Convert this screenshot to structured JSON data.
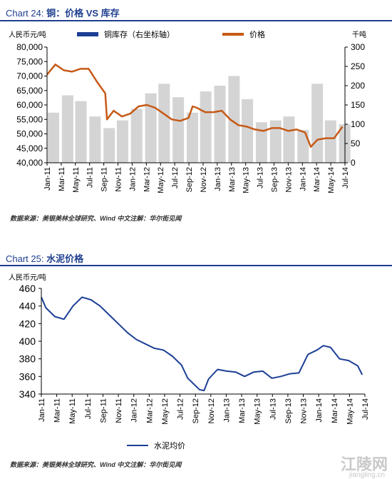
{
  "chart24": {
    "title_num": "Chart 24:",
    "title_text": "铜：价格 VS 库存",
    "left_unit": "人民币元/吨",
    "right_unit": "千吨",
    "source": "数据来源：美银美林全球研究、Wind          中文注解：华尔街见闻"
  },
  "chart25": {
    "title_num": "Chart 25:",
    "title_text": "水泥价格",
    "unit": "人民币元/吨",
    "source": "数据来源：美银美林全球研究、Wind          中文注解：华尔街见闻"
  },
  "watermark": {
    "main": "江陵网",
    "sub": "jiangling.cn"
  },
  "colors": {
    "title": "#1f3f8f",
    "inventory": "#1c3f95",
    "price": "#c65a17",
    "cement": "#1c3f95"
  },
  "chart_data": [
    {
      "type": "bar",
      "title": "铜：价格 VS 库存",
      "x_ticks": [
        "Jan-11",
        "Mar-11",
        "May-11",
        "Jul-11",
        "Sep-11",
        "Nov-11",
        "Jan-12",
        "Mar-12",
        "May-12",
        "Jul-12",
        "Sep-12",
        "Nov-12",
        "Jan-13",
        "Mar-13",
        "May-13",
        "Jul-13",
        "Sep-13",
        "Nov-13",
        "Jan-14",
        "Mar-14",
        "May-14",
        "Jul-14"
      ],
      "ylabel": "人民币元/吨",
      "ylim": [
        40000,
        80000
      ],
      "y_ticks": [
        40000,
        45000,
        50000,
        55000,
        60000,
        65000,
        70000,
        75000,
        80000
      ],
      "y2label": "千吨",
      "y2lim": [
        0,
        300
      ],
      "y2_ticks": [
        0,
        50,
        100,
        150,
        200,
        250,
        300
      ],
      "grid": false,
      "legend": "top",
      "series": [
        {
          "name": "铜库存（右坐标轴）",
          "axis": "right",
          "style": "bar",
          "x": [
            2011.0,
            2011.17,
            2011.33,
            2011.5,
            2011.67,
            2011.83,
            2012.0,
            2012.17,
            2012.33,
            2012.5,
            2012.67,
            2012.83,
            2013.0,
            2013.17,
            2013.33,
            2013.5,
            2013.67,
            2013.83,
            2014.0,
            2014.17,
            2014.33,
            2014.5
          ],
          "values": [
            130,
            175,
            160,
            120,
            90,
            110,
            140,
            180,
            205,
            170,
            130,
            185,
            200,
            225,
            165,
            105,
            110,
            120,
            85,
            205,
            110,
            100
          ]
        },
        {
          "name": "价格",
          "axis": "left",
          "style": "line",
          "x": [
            2011.0,
            2011.1,
            2011.2,
            2011.3,
            2011.4,
            2011.5,
            2011.6,
            2011.7,
            2011.72,
            2011.8,
            2011.9,
            2012.0,
            2012.1,
            2012.2,
            2012.3,
            2012.4,
            2012.5,
            2012.6,
            2012.7,
            2012.75,
            2012.8,
            2012.9,
            2013.0,
            2013.1,
            2013.2,
            2013.3,
            2013.4,
            2013.5,
            2013.6,
            2013.7,
            2013.8,
            2013.9,
            2014.0,
            2014.1,
            2014.17,
            2014.25,
            2014.35,
            2014.45,
            2014.55
          ],
          "values": [
            70500,
            74000,
            72000,
            71500,
            72500,
            72500,
            68000,
            64000,
            55000,
            58000,
            56000,
            57000,
            59500,
            60000,
            59000,
            57000,
            55000,
            54500,
            55500,
            59500,
            59000,
            57500,
            57500,
            58000,
            55000,
            53000,
            52500,
            51500,
            51000,
            52000,
            52000,
            51000,
            51500,
            50500,
            45500,
            48000,
            48500,
            48500,
            52500
          ]
        }
      ]
    },
    {
      "type": "line",
      "title": "水泥价格",
      "x_ticks": [
        "Jan-11",
        "Mar-11",
        "May-11",
        "Jul-11",
        "Sep-11",
        "Nov-11",
        "Jan-12",
        "Mar-12",
        "May-12",
        "Jul-12",
        "Sep-12",
        "Nov-12",
        "Jan-13",
        "Mar-13",
        "May-13",
        "Jul-13",
        "Sep-13",
        "Nov-13",
        "Jan-14",
        "Mar-14",
        "May-14",
        "Jul-14"
      ],
      "ylabel": "人民币元/吨",
      "ylim": [
        340,
        460
      ],
      "y_ticks": [
        340,
        360,
        380,
        400,
        420,
        440,
        460
      ],
      "grid": false,
      "legend": "bottom",
      "series": [
        {
          "name": "水泥均价",
          "x": [
            2011.0,
            2011.05,
            2011.15,
            2011.25,
            2011.35,
            2011.45,
            2011.55,
            2011.65,
            2011.75,
            2011.85,
            2011.95,
            2012.05,
            2012.15,
            2012.25,
            2012.35,
            2012.45,
            2012.55,
            2012.62,
            2012.7,
            2012.75,
            2012.8,
            2012.85,
            2012.95,
            2013.05,
            2013.15,
            2013.25,
            2013.35,
            2013.45,
            2013.55,
            2013.65,
            2013.75,
            2013.85,
            2013.95,
            2014.05,
            2014.12,
            2014.2,
            2014.3,
            2014.4,
            2014.5,
            2014.55
          ],
          "values": [
            450,
            438,
            428,
            425,
            440,
            450,
            447,
            440,
            430,
            420,
            410,
            402,
            397,
            392,
            390,
            383,
            373,
            358,
            350,
            345,
            344,
            357,
            368,
            366,
            365,
            360,
            365,
            366,
            358,
            360,
            363,
            364,
            385,
            390,
            395,
            393,
            380,
            378,
            372,
            362
          ]
        }
      ]
    }
  ]
}
